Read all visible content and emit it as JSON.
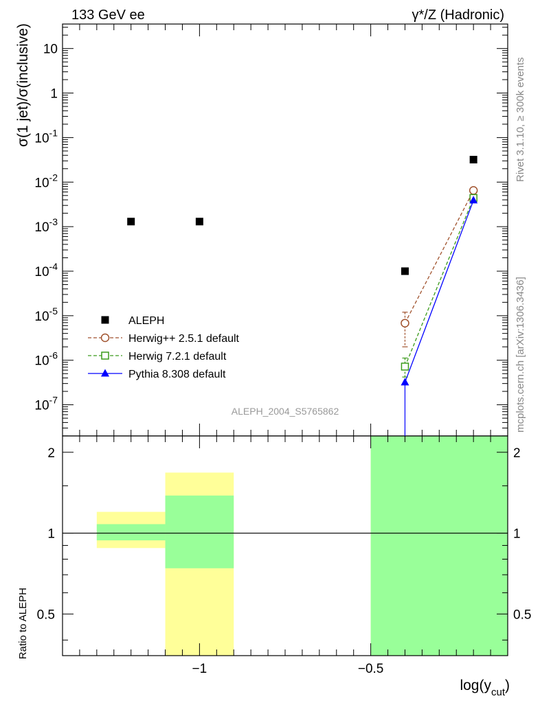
{
  "header": {
    "left_label": "133 GeV ee",
    "right_label": "γ*/Z (Hadronic)"
  },
  "side_labels": {
    "rivet": "Rivet 3.1.10, ≥ 300k events",
    "mcplots": "mcplots.cern.ch [arXiv:1306.3436]"
  },
  "watermark": "ALEPH_2004_S5765862",
  "colors": {
    "aleph": "#000000",
    "herwigpp": "#a0522d",
    "herwig7": "#3a9a1a",
    "pythia": "#0000ff",
    "band_stat": "#99ff99",
    "band_total": "#ffff99"
  },
  "chart_data": [
    {
      "type": "scatter",
      "name": "main",
      "ylabel": "σ(1 jet)/σ(inclusive)",
      "xlim": [
        -1.4,
        -0.1
      ],
      "ylim_log10": [
        -7.7,
        1.55
      ],
      "yscale": "log",
      "y_ticks": [
        {
          "base": "10",
          "exp": "-7",
          "log": -7
        },
        {
          "base": "10",
          "exp": "-6",
          "log": -6
        },
        {
          "base": "10",
          "exp": "-5",
          "log": -5
        },
        {
          "base": "10",
          "exp": "-4",
          "log": -4
        },
        {
          "base": "10",
          "exp": "-3",
          "log": -3
        },
        {
          "base": "10",
          "exp": "-2",
          "log": -2
        },
        {
          "base": "10",
          "exp": "-1",
          "log": -1
        },
        {
          "base": "1",
          "exp": "",
          "log": 0
        },
        {
          "base": "10",
          "exp": "",
          "log": 1
        }
      ],
      "series": [
        {
          "key": "aleph",
          "name": "ALEPH",
          "marker": "filled-square",
          "x": [
            -1.2,
            -1.0,
            -0.4,
            -0.2
          ],
          "y": [
            0.0013,
            0.0013,
            0.0001,
            0.032
          ]
        },
        {
          "key": "herwigpp",
          "name": "Herwig++ 2.5.1 default",
          "marker": "open-circle",
          "line": "dashed",
          "x": [
            -0.4,
            -0.2
          ],
          "y": [
            6.8e-06,
            0.0065
          ],
          "err_low": [
            4.8e-06,
            0
          ],
          "err_high": [
            5.2e-06,
            0
          ]
        },
        {
          "key": "herwig7",
          "name": "Herwig 7.2.1 default",
          "marker": "open-square",
          "line": "dashed",
          "x": [
            -0.4,
            -0.2
          ],
          "y": [
            7.2e-07,
            0.0044
          ],
          "err_low": [
            3e-07,
            0
          ],
          "err_high": [
            4e-07,
            0
          ]
        },
        {
          "key": "pythia",
          "name": "Pythia 8.308 default",
          "marker": "filled-triangle",
          "line": "solid",
          "x": [
            -0.4,
            -0.2
          ],
          "y": [
            3.2e-07,
            0.0039
          ],
          "err_low": [
            3.2e-07,
            0
          ],
          "err_high": [
            0,
            0
          ]
        }
      ]
    },
    {
      "type": "area",
      "name": "ratio",
      "ylabel": "Ratio to ALEPH",
      "xlabel": "log(y",
      "xlabel_sub": "cut",
      "xlabel_close": ")",
      "xlim": [
        -1.4,
        -0.1
      ],
      "ylim": [
        0.35,
        2.3
      ],
      "y_ticks": [
        {
          "label": "0.5",
          "value": 0.5
        },
        {
          "label": "1",
          "value": 1
        },
        {
          "label": "2",
          "value": 2
        }
      ],
      "x_ticks": [
        {
          "label": "−1",
          "value": -1.0
        },
        {
          "label": "−0.5",
          "value": -0.5
        }
      ],
      "reference": 1.0,
      "bands": [
        {
          "x0": -1.3,
          "x1": -1.1,
          "total_lo": 0.88,
          "total_hi": 1.2,
          "stat_lo": 0.94,
          "stat_hi": 1.08
        },
        {
          "x0": -1.1,
          "x1": -0.9,
          "total_lo": 0.35,
          "total_hi": 1.68,
          "stat_lo": 0.74,
          "stat_hi": 1.38
        },
        {
          "x0": -0.5,
          "x1": -0.1,
          "total_lo": 0.35,
          "total_hi": 2.3,
          "stat_lo": 0.35,
          "stat_hi": 2.3
        }
      ]
    }
  ]
}
